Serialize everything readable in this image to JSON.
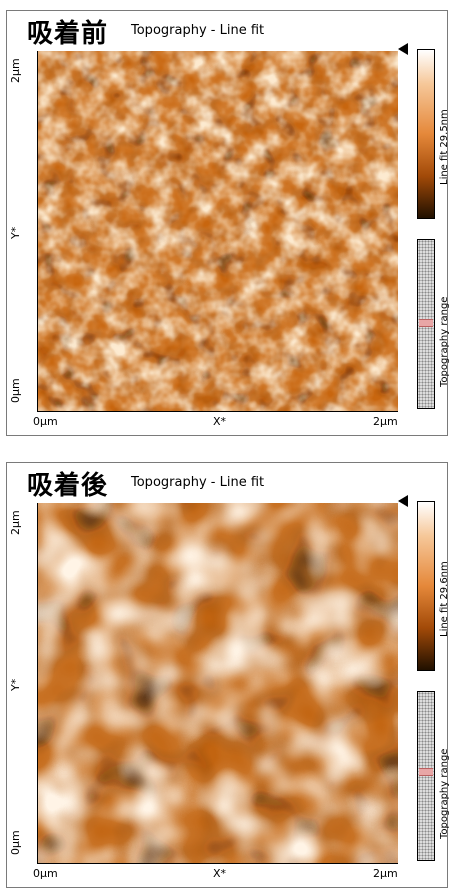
{
  "panels": [
    {
      "title": "吸着前",
      "subtitle": "Topography - Line fit",
      "y_axis": {
        "top": "2µm",
        "label": "Y*",
        "bottom": "0µm"
      },
      "x_axis": {
        "left": "0µm",
        "label": "X*",
        "right": "2µm"
      },
      "colorbar_label": "Line fit 29.5nm",
      "range_label": "Topography range",
      "range_level": 0.47
    },
    {
      "title": "吸着後",
      "subtitle": "Topography - Line fit",
      "y_axis": {
        "top": "2µm",
        "label": "Y*",
        "bottom": "0µm"
      },
      "x_axis": {
        "left": "0µm",
        "label": "X*",
        "right": "2µm"
      },
      "colorbar_label": "Line fit 29.6nm",
      "range_label": "Topography range",
      "range_level": 0.45
    }
  ],
  "colors": {
    "base": "#c8660f",
    "dark": "#2a1400",
    "light": "#fff4e6",
    "frame": "#7a7a7a"
  }
}
